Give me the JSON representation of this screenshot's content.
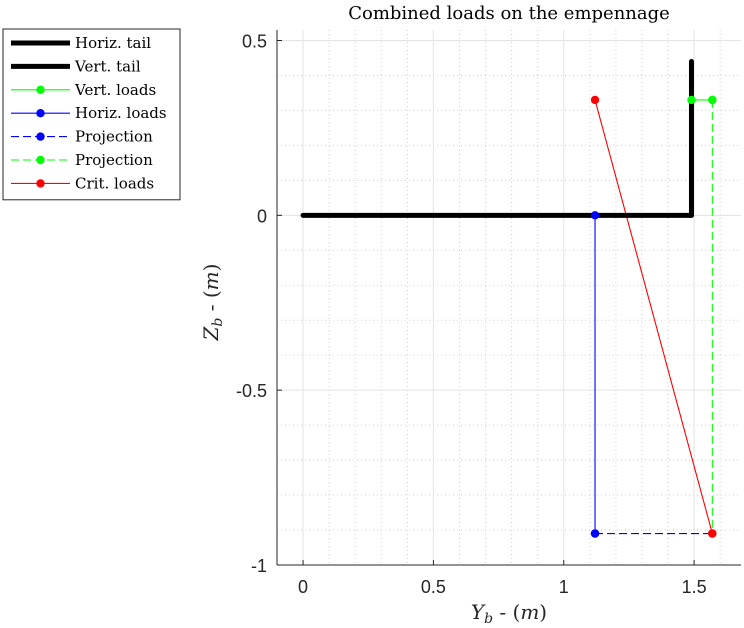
{
  "chart_data": {
    "type": "line",
    "title": "Combined loads on the empennage",
    "xlabel": "Y_b - (m)",
    "ylabel": "Z_b - (m)",
    "xlim": [
      -0.1,
      1.68
    ],
    "ylim": [
      -1.0,
      0.53
    ],
    "xticks": [
      0,
      0.5,
      1,
      1.5
    ],
    "xtick_labels": [
      "0",
      "0.5",
      "1",
      "1.5"
    ],
    "yticks": [
      -1,
      -0.5,
      0,
      0.5
    ],
    "ytick_labels": [
      "-1",
      "-0.5",
      "0",
      "0.5"
    ],
    "grid": true,
    "minor_grid": true,
    "legend_position": "outside-left",
    "series": [
      {
        "name": "Horiz. tail",
        "color": "#000000",
        "style": "solid",
        "width": "thick",
        "marker": "none",
        "x": [
          0,
          1.49,
          1.49
        ],
        "y": [
          0,
          0,
          0
        ]
      },
      {
        "name": "Vert. tail",
        "color": "#000000",
        "style": "solid",
        "width": "thick",
        "marker": "none",
        "x": [
          1.49,
          1.49
        ],
        "y": [
          0,
          0.44
        ]
      },
      {
        "name": "Vert. loads",
        "color": "#00ff00",
        "style": "solid",
        "width": "thin",
        "marker": "dot",
        "x": [
          1.49,
          1.57
        ],
        "y": [
          0.33,
          0.33
        ]
      },
      {
        "name": "Horiz. loads",
        "color": "#0000ff",
        "style": "solid",
        "width": "thin",
        "marker": "dot",
        "x": [
          1.12,
          1.12
        ],
        "y": [
          0,
          -0.91
        ]
      },
      {
        "name": "Projection",
        "color": "#0000ff",
        "style": "dashed",
        "width": "thin",
        "marker": "dot",
        "x": [
          1.12,
          1.57
        ],
        "y": [
          -0.91,
          -0.91
        ]
      },
      {
        "name": "Projection",
        "color": "#00ff00",
        "style": "dashed",
        "width": "thin",
        "marker": "dot",
        "x": [
          1.57,
          1.57
        ],
        "y": [
          0.33,
          -0.91
        ]
      },
      {
        "name": "Crit. loads",
        "color": "#ff0000",
        "style": "solid",
        "width": "thin",
        "marker": "dot",
        "x": [
          1.12,
          1.57
        ],
        "y": [
          0.33,
          -0.91
        ]
      }
    ]
  }
}
